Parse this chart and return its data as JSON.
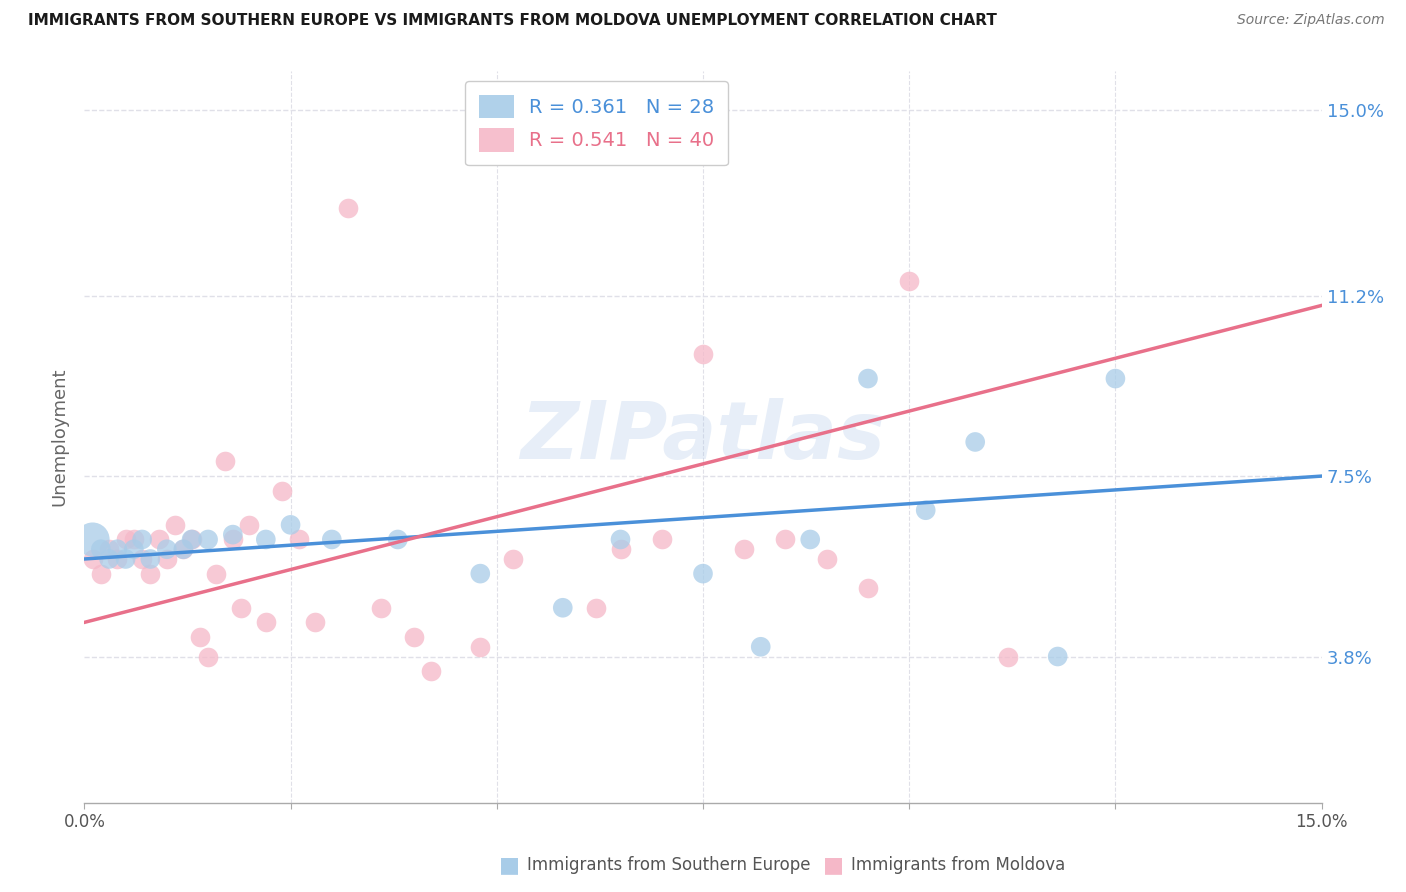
{
  "title": "IMMIGRANTS FROM SOUTHERN EUROPE VS IMMIGRANTS FROM MOLDOVA UNEMPLOYMENT CORRELATION CHART",
  "source": "Source: ZipAtlas.com",
  "xlabel_bottom": [
    "Immigrants from Southern Europe",
    "Immigrants from Moldova"
  ],
  "ylabel": "Unemployment",
  "xlim": [
    0.0,
    0.15
  ],
  "ylim": [
    0.008,
    0.158
  ],
  "yticks": [
    0.038,
    0.075,
    0.112,
    0.15
  ],
  "ytick_labels": [
    "3.8%",
    "7.5%",
    "11.2%",
    "15.0%"
  ],
  "blue_label": "R = 0.361   N = 28",
  "pink_label": "R = 0.541   N = 40",
  "blue_color": "#a8cce8",
  "pink_color": "#f5b8c8",
  "blue_line_color": "#4a90d9",
  "pink_line_color": "#e8708a",
  "blue_scatter_x": [
    0.001,
    0.002,
    0.003,
    0.004,
    0.005,
    0.006,
    0.007,
    0.008,
    0.01,
    0.012,
    0.013,
    0.015,
    0.018,
    0.022,
    0.025,
    0.03,
    0.038,
    0.048,
    0.058,
    0.065,
    0.075,
    0.082,
    0.088,
    0.095,
    0.102,
    0.108,
    0.118,
    0.125
  ],
  "blue_scatter_y": [
    0.062,
    0.06,
    0.058,
    0.06,
    0.058,
    0.06,
    0.062,
    0.058,
    0.06,
    0.06,
    0.062,
    0.062,
    0.063,
    0.062,
    0.065,
    0.062,
    0.062,
    0.055,
    0.048,
    0.062,
    0.055,
    0.04,
    0.062,
    0.095,
    0.068,
    0.082,
    0.038,
    0.095
  ],
  "blue_scatter_sizes": [
    600,
    200,
    200,
    200,
    200,
    200,
    200,
    200,
    200,
    200,
    200,
    200,
    200,
    200,
    200,
    200,
    200,
    200,
    200,
    200,
    200,
    200,
    200,
    200,
    200,
    200,
    200,
    200
  ],
  "pink_scatter_x": [
    0.001,
    0.002,
    0.003,
    0.004,
    0.005,
    0.006,
    0.007,
    0.008,
    0.009,
    0.01,
    0.011,
    0.012,
    0.013,
    0.014,
    0.015,
    0.016,
    0.017,
    0.018,
    0.019,
    0.02,
    0.022,
    0.024,
    0.026,
    0.028,
    0.032,
    0.036,
    0.04,
    0.042,
    0.048,
    0.052,
    0.062,
    0.065,
    0.07,
    0.075,
    0.08,
    0.085,
    0.09,
    0.095,
    0.1,
    0.112
  ],
  "pink_scatter_y": [
    0.058,
    0.055,
    0.06,
    0.058,
    0.062,
    0.062,
    0.058,
    0.055,
    0.062,
    0.058,
    0.065,
    0.06,
    0.062,
    0.042,
    0.038,
    0.055,
    0.078,
    0.062,
    0.048,
    0.065,
    0.045,
    0.072,
    0.062,
    0.045,
    0.13,
    0.048,
    0.042,
    0.035,
    0.04,
    0.058,
    0.048,
    0.06,
    0.062,
    0.1,
    0.06,
    0.062,
    0.058,
    0.052,
    0.115,
    0.038
  ],
  "watermark": "ZIPatlas",
  "background_color": "#ffffff",
  "grid_color": "#e0e0e8"
}
